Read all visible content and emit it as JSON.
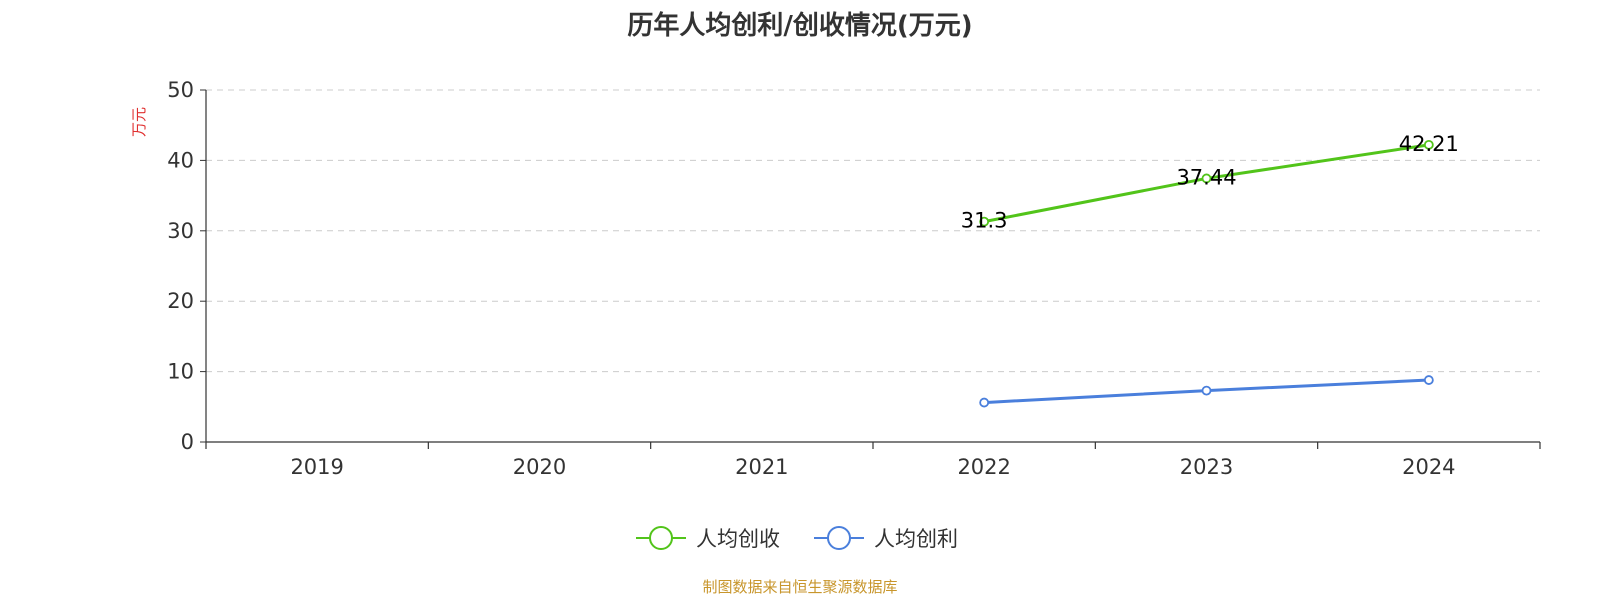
{
  "chart_data": {
    "type": "line",
    "title": "历年人均创利/创收情况(万元)",
    "ylabel": "万元",
    "categories": [
      "2019",
      "2020",
      "2021",
      "2022",
      "2023",
      "2024"
    ],
    "ylim": [
      0,
      50
    ],
    "yticks": [
      0,
      10,
      20,
      30,
      40,
      50
    ],
    "grid": true,
    "legend_position": "bottom",
    "series": [
      {
        "name": "人均创收",
        "color": "#52c41a",
        "values": [
          null,
          null,
          null,
          31.3,
          37.44,
          42.21
        ],
        "data_labels": [
          "",
          "",
          "",
          "31.3",
          "37.44",
          "42.21"
        ]
      },
      {
        "name": "人均创利",
        "color": "#4a7fdc",
        "values": [
          null,
          null,
          null,
          5.6,
          7.3,
          8.8
        ],
        "data_labels": [
          "",
          "",
          "",
          "",
          "",
          ""
        ]
      }
    ]
  },
  "footer": {
    "source": "制图数据来自恒生聚源数据库"
  }
}
